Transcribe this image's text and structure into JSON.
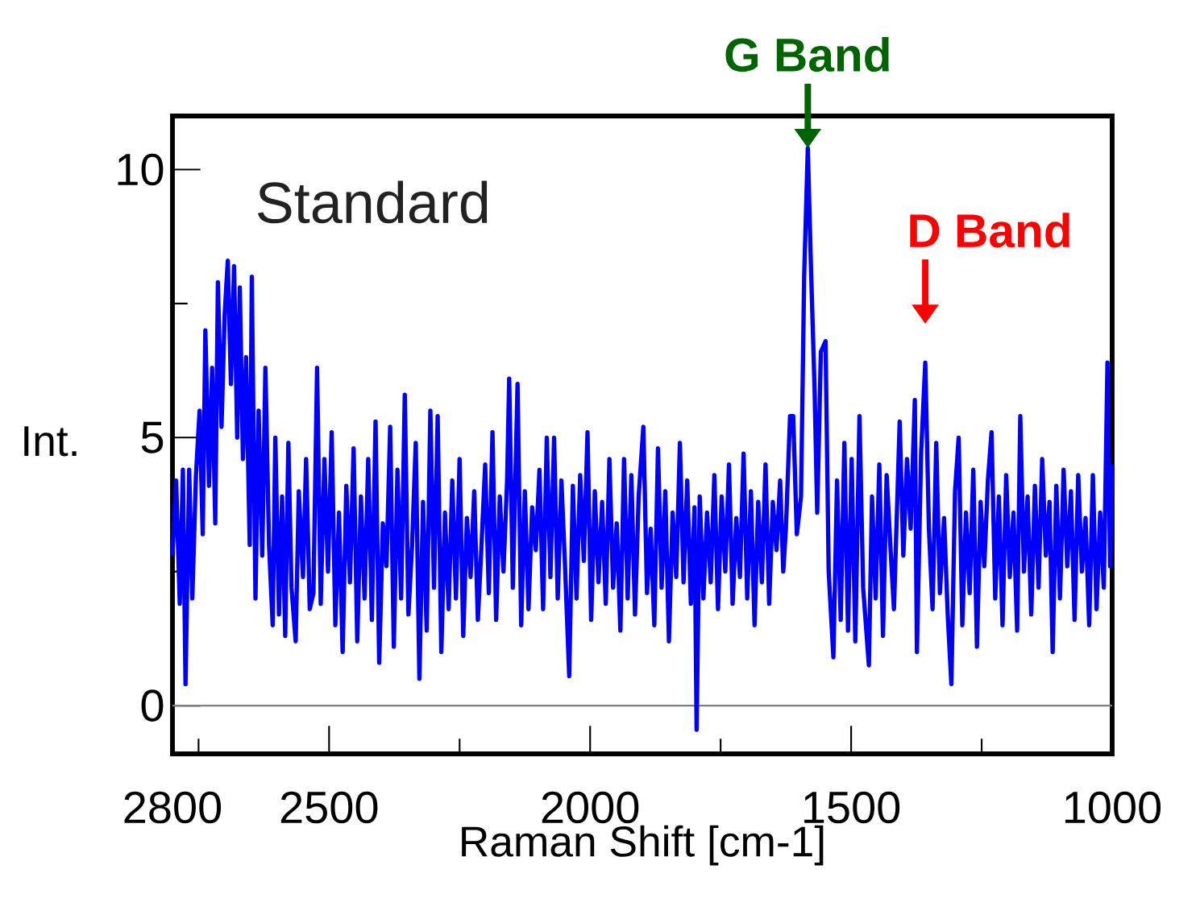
{
  "chart_data": {
    "type": "line",
    "xlabel": "Raman Shift [cm-1]",
    "ylabel": "Int.",
    "annotations": [
      "Standard",
      {
        "text": "G Band",
        "x": 1583,
        "y": 10.4
      },
      {
        "text": "D Band",
        "x": 1358,
        "y": 6.4
      }
    ],
    "xlim": [
      2800,
      1000
    ],
    "ylim": [
      -0.9,
      11
    ],
    "xticks": [
      2800,
      {
        "value": 2750,
        "label": null
      },
      2500,
      {
        "value": 2250,
        "label": null
      },
      2000,
      {
        "value": 1750,
        "label": null
      },
      1500,
      {
        "value": 1250,
        "label": null
      },
      1000
    ],
    "yticks": [
      0,
      {
        "value": 2.5,
        "label": null
      },
      5,
      {
        "value": 7.5,
        "label": null
      },
      10
    ],
    "ref_lines": [
      {
        "axis": "y",
        "value": 0,
        "color": "#808080"
      }
    ],
    "x": [
      2800,
      2793,
      2786,
      2780,
      2775,
      2768,
      2762,
      2755,
      2748,
      2742,
      2737,
      2730,
      2724,
      2718,
      2713,
      2706,
      2700,
      2694,
      2688,
      2682,
      2676,
      2671,
      2665,
      2659,
      2652,
      2648,
      2641,
      2635,
      2628,
      2622,
      2615,
      2608,
      2603,
      2596,
      2590,
      2584,
      2578,
      2572,
      2564,
      2558,
      2550,
      2544,
      2537,
      2530,
      2523,
      2516,
      2509,
      2502,
      2495,
      2488,
      2481,
      2474,
      2467,
      2460,
      2453,
      2446,
      2439,
      2432,
      2425,
      2418,
      2411,
      2404,
      2397,
      2390,
      2383,
      2376,
      2369,
      2362,
      2355,
      2348,
      2341,
      2334,
      2327,
      2320,
      2313,
      2306,
      2299,
      2292,
      2285,
      2278,
      2271,
      2264,
      2257,
      2250,
      2243,
      2236,
      2229,
      2222,
      2215,
      2208,
      2201,
      2194,
      2187,
      2180,
      2173,
      2166,
      2159,
      2155,
      2148,
      2139,
      2132,
      2125,
      2118,
      2111,
      2104,
      2097,
      2090,
      2083,
      2076,
      2069,
      2062,
      2055,
      2048,
      2040,
      2033,
      2026,
      2019,
      2012,
      2005,
      1998,
      1991,
      1984,
      1977,
      1970,
      1963,
      1956,
      1949,
      1942,
      1935,
      1928,
      1921,
      1914,
      1907,
      1898,
      1891,
      1884,
      1877,
      1870,
      1863,
      1856,
      1849,
      1842,
      1835,
      1828,
      1821,
      1814,
      1807,
      1800,
      1796,
      1790,
      1783,
      1776,
      1769,
      1762,
      1755,
      1748,
      1741,
      1734,
      1727,
      1720,
      1713,
      1706,
      1699,
      1692,
      1685,
      1678,
      1671,
      1664,
      1657,
      1650,
      1643,
      1636,
      1630,
      1625,
      1617,
      1611,
      1604,
      1596,
      1590,
      1583,
      1577,
      1570,
      1565,
      1558,
      1549,
      1543,
      1534,
      1527,
      1520,
      1513,
      1506,
      1499,
      1492,
      1484,
      1477,
      1466,
      1460,
      1453,
      1446,
      1439,
      1432,
      1425,
      1418,
      1407,
      1400,
      1393,
      1386,
      1378,
      1374,
      1366,
      1358,
      1351,
      1344,
      1337,
      1330,
      1322,
      1315,
      1308,
      1301,
      1294,
      1287,
      1280,
      1273,
      1266,
      1259,
      1252,
      1245,
      1238,
      1231,
      1224,
      1217,
      1210,
      1203,
      1196,
      1189,
      1182,
      1176,
      1169,
      1162,
      1155,
      1148,
      1141,
      1134,
      1127,
      1120,
      1114,
      1107,
      1100,
      1093,
      1086,
      1079,
      1072,
      1065,
      1058,
      1051,
      1044,
      1037,
      1030,
      1023,
      1016,
      1009,
      1004,
      1000
    ],
    "series": [
      {
        "color": "#0000ff",
        "values": [
          2.8,
          4.2,
          1.9,
          4.4,
          0.4,
          4.4,
          2.0,
          4.3,
          5.5,
          3.2,
          7.0,
          4.1,
          6.3,
          3.4,
          7.9,
          5.2,
          7.3,
          8.3,
          6.0,
          8.2,
          5.0,
          7.8,
          4.6,
          6.5,
          3.0,
          8.0,
          2.0,
          5.5,
          2.8,
          6.3,
          3.0,
          1.5,
          5.0,
          1.7,
          3.9,
          1.3,
          4.9,
          2.2,
          1.2,
          4.0,
          2.4,
          4.6,
          1.8,
          2.1,
          6.3,
          1.9,
          4.6,
          2.5,
          5.1,
          1.5,
          3.6,
          1.0,
          4.1,
          2.3,
          4.8,
          1.2,
          3.9,
          2.0,
          4.6,
          1.6,
          5.3,
          0.8,
          3.4,
          2.6,
          5.2,
          1.1,
          4.4,
          2.0,
          5.8,
          1.7,
          3.0,
          4.9,
          0.5,
          3.8,
          1.4,
          5.5,
          2.2,
          5.4,
          1.0,
          3.6,
          1.8,
          4.2,
          2.0,
          4.6,
          1.3,
          3.5,
          2.4,
          4.0,
          1.6,
          3.0,
          4.5,
          2.1,
          5.1,
          1.6,
          3.9,
          2.5,
          4.2,
          6.1,
          2.2,
          6.0,
          1.5,
          4.0,
          1.8,
          3.7,
          2.9,
          4.4,
          1.8,
          5.0,
          2.4,
          5.0,
          2.0,
          4.2,
          2.6,
          0.55,
          4.1,
          2.0,
          4.3,
          2.7,
          5.1,
          1.6,
          4.0,
          2.3,
          3.8,
          1.9,
          4.6,
          2.2,
          3.4,
          1.4,
          4.6,
          2.0,
          4.3,
          1.7,
          3.9,
          5.2,
          2.1,
          3.3,
          1.5,
          4.8,
          2.2,
          4.0,
          1.2,
          3.6,
          2.4,
          4.9,
          2.3,
          4.2,
          1.9,
          3.7,
          -0.45,
          3.9,
          2.0,
          3.6,
          2.3,
          4.3,
          1.8,
          3.9,
          2.5,
          4.5,
          1.9,
          3.5,
          2.4,
          4.7,
          2.0,
          4.0,
          1.5,
          3.8,
          2.3,
          4.5,
          1.9,
          3.8,
          2.9,
          4.2,
          2.5,
          3.3,
          5.4,
          5.4,
          3.2,
          3.9,
          8.0,
          10.4,
          8.2,
          5.9,
          3.6,
          6.6,
          6.8,
          2.5,
          0.9,
          4.2,
          1.6,
          4.9,
          1.4,
          4.6,
          1.2,
          5.4,
          2.2,
          0.75,
          3.9,
          2.0,
          4.5,
          1.3,
          4.3,
          3.0,
          1.8,
          5.3,
          2.8,
          4.6,
          3.3,
          5.7,
          1.0,
          4.7,
          6.4,
          3.3,
          1.8,
          4.9,
          2.1,
          3.5,
          1.7,
          0.4,
          4.0,
          5.0,
          1.5,
          3.6,
          2.1,
          4.4,
          1.1,
          3.8,
          2.6,
          4.2,
          5.1,
          2.0,
          3.9,
          1.5,
          4.3,
          2.4,
          3.6,
          1.4,
          5.4,
          2.5,
          3.9,
          1.7,
          4.1,
          2.2,
          4.6,
          2.8,
          3.8,
          1.0,
          4.1,
          2.0,
          4.4,
          2.6,
          4.0,
          1.6,
          4.3,
          2.5,
          3.5,
          1.5,
          4.3,
          1.8,
          3.6,
          2.2,
          6.4,
          2.6,
          4.5
        ]
      }
    ]
  }
}
